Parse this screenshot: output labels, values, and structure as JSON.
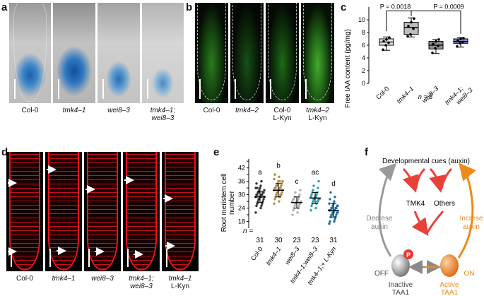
{
  "panel_letters": [
    "a",
    "b",
    "c",
    "d",
    "e",
    "f"
  ],
  "panel_a": {
    "captions": [
      {
        "text": "Col-0",
        "italic": false
      },
      {
        "text": "tmk4–1",
        "italic": true
      },
      {
        "text": "wei8–3",
        "italic": true
      },
      {
        "text": "tmk4–1;",
        "italic": true,
        "line2": "wei8–3"
      }
    ]
  },
  "panel_b": {
    "captions": [
      {
        "text": "Col-0",
        "italic": false
      },
      {
        "text": "tmk4–2",
        "italic": true
      },
      {
        "text": "Col-0",
        "italic": false,
        "line2": "L-Kyn"
      },
      {
        "text": "tmk4–2",
        "italic": true,
        "line2": "L-Kyn"
      }
    ]
  },
  "panel_d": {
    "captions": [
      {
        "text": "Col-0",
        "italic": false
      },
      {
        "text": "tmk4–1",
        "italic": true
      },
      {
        "text": "wei8–3",
        "italic": true
      },
      {
        "text": "tmk4–1;",
        "italic": true,
        "line2": "wei8–3"
      },
      {
        "text": "tmk4–1",
        "italic": true,
        "line2": "L-Kyn"
      }
    ]
  },
  "panel_f": {
    "top": "Developmental cues (auxin)",
    "tmk4": "TMK4",
    "others": "Others",
    "left_label_1": "Decrese",
    "left_label_2": "auxin",
    "right_label_1": "Increse",
    "right_label_2": "auxin",
    "off": "OFF",
    "on": "ON",
    "p": "P",
    "inactive_1": "Inactive",
    "inactive_2": "TAA1",
    "active_1": "Active",
    "active_2": "TAA1",
    "colors": {
      "red": "#e8413a",
      "gray": "#9a9a9a",
      "orange": "#ee8a1c"
    }
  },
  "chart_data": [
    {
      "type": "box",
      "panel": "c",
      "ylabel": "Free IAA content (pg/mg)",
      "ylim": [
        0,
        12
      ],
      "yticks": [
        0,
        2,
        4,
        6,
        8,
        10
      ],
      "categories": [
        "Col-0",
        "tmk4–1",
        "wei8–3",
        "tmk4–1; wei8–3"
      ],
      "colors": [
        "#e6e6e6",
        "#bdbdbd",
        "#8e8e8e",
        "#7f88cc"
      ],
      "boxes": [
        {
          "min": 5.2,
          "q1": 6.0,
          "median": 6.5,
          "q3": 7.0,
          "max": 7.3,
          "points": [
            5.3,
            6.0,
            6.4,
            6.6,
            6.9,
            7.2
          ]
        },
        {
          "min": 7.3,
          "q1": 7.7,
          "median": 8.8,
          "q3": 9.6,
          "max": 10.3,
          "points": [
            7.4,
            7.7,
            8.6,
            9.0,
            9.6,
            10.2
          ]
        },
        {
          "min": 4.7,
          "q1": 5.4,
          "median": 6.0,
          "q3": 6.6,
          "max": 6.9,
          "points": [
            4.8,
            5.5,
            5.9,
            6.2,
            6.6,
            6.9
          ]
        },
        {
          "min": 5.7,
          "q1": 6.3,
          "median": 6.6,
          "q3": 7.0,
          "max": 7.2,
          "points": [
            5.8,
            6.3,
            6.5,
            6.7,
            7.0,
            7.1
          ]
        }
      ],
      "comparisons": [
        {
          "text": "P = 0.0018"
        },
        {
          "text": "P = 0.0009"
        }
      ],
      "annotation": "n = 6"
    },
    {
      "type": "scatter",
      "panel": "e",
      "ylabel": "Root meristem cell number",
      "ylim": [
        15,
        46
      ],
      "yticks": [
        18,
        21,
        24,
        27,
        30,
        33,
        36,
        39,
        42,
        45
      ],
      "categories": [
        "Col-0",
        "tmk4–1",
        "wei8–3",
        "tmk4–1;wei8–3",
        "tmk4–1;+ L-Kyn"
      ],
      "colors": [
        "#333333",
        "#b58a4a",
        "#b0b0b0",
        "#2e9eb0",
        "#1a6fa8"
      ],
      "means": [
        29,
        32,
        26.5,
        28.5,
        23
      ],
      "sd": [
        2.5,
        3,
        2.5,
        2.5,
        3
      ],
      "letters": [
        "a",
        "b",
        "c",
        "ac",
        "d"
      ],
      "n_label": "n =",
      "n": [
        "31",
        "30",
        "23",
        "23",
        "31"
      ],
      "points": [
        [
          22,
          24,
          25,
          25,
          26,
          26,
          27,
          27,
          28,
          28,
          28,
          29,
          29,
          29,
          29,
          30,
          30,
          30,
          30,
          31,
          31,
          31,
          31,
          32,
          32,
          33,
          33,
          34,
          35,
          36,
          33
        ],
        [
          26,
          27,
          28,
          29,
          29,
          30,
          30,
          30,
          31,
          31,
          31,
          32,
          32,
          32,
          32,
          33,
          33,
          33,
          33,
          34,
          34,
          34,
          35,
          35,
          36,
          36,
          37,
          38,
          39,
          36
        ],
        [
          21,
          22,
          23,
          24,
          24,
          25,
          25,
          26,
          26,
          26,
          26,
          27,
          27,
          27,
          27,
          28,
          28,
          28,
          29,
          29,
          30,
          31,
          32
        ],
        [
          23,
          24,
          25,
          26,
          26,
          27,
          27,
          27,
          28,
          28,
          28,
          28,
          29,
          29,
          29,
          30,
          30,
          31,
          31,
          32,
          33,
          34,
          36
        ],
        [
          17,
          18,
          18,
          19,
          20,
          20,
          21,
          21,
          21,
          22,
          22,
          22,
          22,
          23,
          23,
          23,
          23,
          23,
          24,
          24,
          24,
          24,
          25,
          25,
          25,
          26,
          26,
          27,
          28,
          29,
          31
        ]
      ]
    }
  ]
}
